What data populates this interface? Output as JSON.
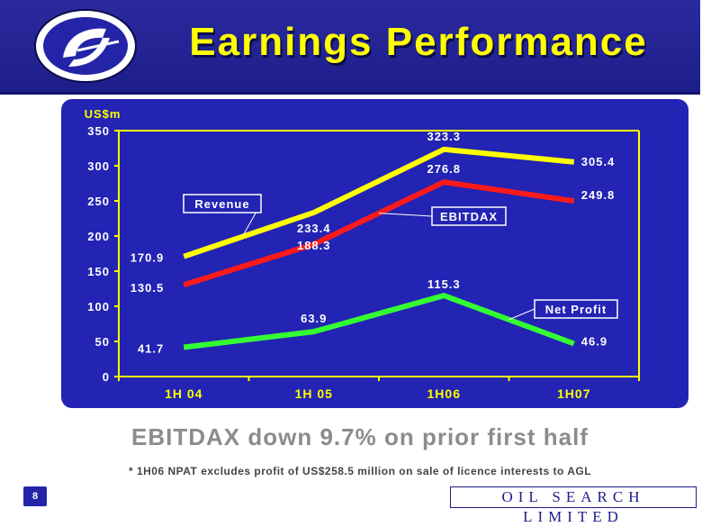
{
  "slide": {
    "title": "Earnings Performance",
    "headline": "EBITDAX down 9.7%  on prior first half",
    "footnote": "* 1H06 NPAT excludes profit of US$258.5 million on sale of licence interests to AGL",
    "page_number": "8",
    "company": "OIL SEARCH LIMITED"
  },
  "colors": {
    "banner": "#1d1d8a",
    "title": "#ffff00",
    "panel": "#2323b4",
    "axis": "#ffff00",
    "label": "#ffffff",
    "revenue": "#ffff00",
    "ebitdax": "#ff1a1a",
    "net_profit": "#33ff33"
  },
  "chart_data": {
    "type": "line",
    "ylabel": "US$m",
    "ylim": [
      0,
      350
    ],
    "yticks": [
      0,
      50,
      100,
      150,
      200,
      250,
      300,
      350
    ],
    "categories": [
      "1H 04",
      "1H 05",
      "1H06",
      "1H07"
    ],
    "grid": false,
    "series": [
      {
        "name": "Revenue",
        "color": "#ffff00",
        "values": [
          170.9,
          233.4,
          323.3,
          305.4
        ]
      },
      {
        "name": "EBITDAX",
        "color": "#ff1a1a",
        "values": [
          130.5,
          188.3,
          276.8,
          249.8
        ]
      },
      {
        "name": "Net Profit",
        "color": "#33ff33",
        "values": [
          41.7,
          63.9,
          115.3,
          46.9
        ]
      }
    ]
  }
}
